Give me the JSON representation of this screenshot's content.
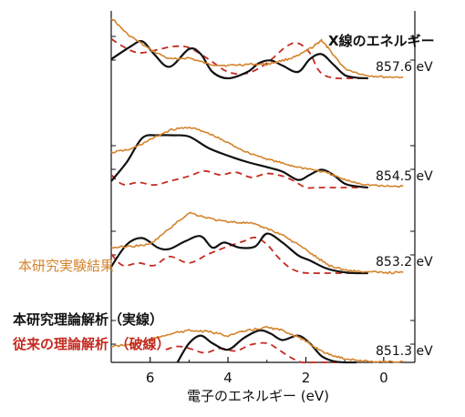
{
  "chart_data": {
    "type": "line",
    "xlabel": "電子のエネルギー (eV)",
    "ylabel": "",
    "xlim": [
      7.0,
      -0.8
    ],
    "x_ticks": [
      6,
      4,
      2,
      0
    ],
    "x_reversed": true,
    "grid": false,
    "legend": {
      "experiment": "本研究実験結果",
      "theory_this_work": "本研究理論解析（実線）",
      "theory_previous": "従来の理論解析　（破線）"
    },
    "header_label": "X線のエネルギー",
    "colors": {
      "experiment": "#d4832c",
      "theory_this_work": "#111111",
      "theory_previous": "#c42a20"
    },
    "panels": [
      {
        "energy": "857.6 eV",
        "experiment": {
          "x": [
            7.0,
            6.6,
            6.0,
            5.5,
            5.0,
            4.5,
            4.0,
            3.5,
            3.0,
            2.6,
            2.2,
            1.8,
            1.6,
            1.4,
            1.0,
            0.5,
            0.0,
            -0.5
          ],
          "y": [
            0.95,
            0.7,
            0.45,
            0.3,
            0.32,
            0.22,
            0.2,
            0.22,
            0.22,
            0.28,
            0.35,
            0.5,
            0.6,
            0.45,
            0.15,
            0.05,
            0.02,
            0.02
          ]
        },
        "theory_this_work": {
          "x": [
            7.0,
            6.5,
            6.2,
            5.9,
            5.5,
            5.0,
            4.7,
            4.4,
            4.0,
            3.5,
            3.2,
            2.9,
            2.6,
            2.2,
            1.9,
            1.6,
            1.3,
            1.0,
            0.7,
            0.4
          ],
          "y": [
            0.3,
            0.5,
            0.58,
            0.38,
            0.18,
            0.46,
            0.38,
            0.1,
            0.0,
            0.1,
            0.24,
            0.28,
            0.2,
            0.1,
            0.3,
            0.38,
            0.22,
            0.05,
            0.01,
            0.0
          ]
        },
        "theory_previous": {
          "x": [
            7.0,
            6.7,
            6.3,
            5.8,
            5.4,
            5.0,
            4.5,
            4.0,
            3.5,
            3.0,
            2.5,
            2.2,
            1.9,
            1.7,
            1.5,
            1.2,
            0.8,
            0.4
          ],
          "y": [
            0.62,
            0.5,
            0.4,
            0.45,
            0.5,
            0.48,
            0.3,
            0.1,
            0.08,
            0.24,
            0.5,
            0.55,
            0.4,
            0.15,
            0.04,
            0.0,
            0.0,
            0.0
          ]
        }
      },
      {
        "energy": "854.5 eV",
        "experiment": {
          "x": [
            7.0,
            6.5,
            6.0,
            5.5,
            5.0,
            4.5,
            4.0,
            3.5,
            3.0,
            2.6,
            2.2,
            1.8,
            1.4,
            1.0,
            0.5,
            0.0,
            -0.5
          ],
          "y": [
            0.55,
            0.6,
            0.75,
            0.9,
            0.95,
            0.85,
            0.7,
            0.55,
            0.45,
            0.38,
            0.32,
            0.28,
            0.22,
            0.12,
            0.05,
            0.02,
            0.02
          ]
        },
        "theory_this_work": {
          "x": [
            7.0,
            6.6,
            6.2,
            5.8,
            5.4,
            5.0,
            4.5,
            4.0,
            3.5,
            3.0,
            2.6,
            2.2,
            1.9,
            1.6,
            1.3,
            1.0,
            0.7,
            0.4
          ],
          "y": [
            0.1,
            0.4,
            0.78,
            0.82,
            0.82,
            0.8,
            0.62,
            0.5,
            0.4,
            0.32,
            0.25,
            0.12,
            0.2,
            0.28,
            0.2,
            0.06,
            0.02,
            0.0
          ]
        },
        "theory_previous": {
          "x": [
            7.0,
            6.7,
            6.3,
            5.9,
            5.5,
            5.0,
            4.6,
            4.2,
            3.8,
            3.4,
            3.0,
            2.6,
            2.3,
            2.0,
            1.7,
            1.4,
            1.0,
            0.6
          ],
          "y": [
            0.2,
            0.05,
            0.08,
            0.04,
            0.1,
            0.18,
            0.26,
            0.2,
            0.24,
            0.16,
            0.22,
            0.18,
            0.1,
            0.0,
            0.0,
            0.0,
            0.0,
            0.0
          ]
        }
      },
      {
        "energy": "853.2 eV",
        "experiment": {
          "x": [
            7.0,
            6.5,
            6.0,
            5.5,
            5.0,
            4.6,
            4.2,
            3.8,
            3.4,
            3.0,
            2.6,
            2.2,
            1.8,
            1.4,
            1.0,
            0.5,
            0.0,
            -0.5
          ],
          "y": [
            0.4,
            0.42,
            0.45,
            0.7,
            0.95,
            0.88,
            0.82,
            0.8,
            0.78,
            0.7,
            0.6,
            0.45,
            0.28,
            0.12,
            0.05,
            0.02,
            0.01,
            0.01
          ]
        },
        "theory_this_work": {
          "x": [
            7.0,
            6.6,
            6.2,
            5.8,
            5.5,
            5.1,
            4.7,
            4.4,
            4.1,
            3.7,
            3.3,
            3.0,
            2.6,
            2.2,
            1.9,
            1.5,
            1.1,
            0.7,
            0.4
          ],
          "y": [
            0.1,
            0.45,
            0.55,
            0.4,
            0.38,
            0.5,
            0.58,
            0.4,
            0.48,
            0.4,
            0.42,
            0.62,
            0.48,
            0.28,
            0.2,
            0.08,
            0.02,
            0.0,
            0.0
          ]
        },
        "theory_previous": {
          "x": [
            7.0,
            6.7,
            6.3,
            5.9,
            5.5,
            5.0,
            4.5,
            4.0,
            3.6,
            3.3,
            3.0,
            2.7,
            2.4,
            2.1,
            1.8,
            1.4,
            1.0,
            0.6
          ],
          "y": [
            0.3,
            0.12,
            0.16,
            0.12,
            0.26,
            0.16,
            0.3,
            0.42,
            0.5,
            0.56,
            0.45,
            0.24,
            0.08,
            0.01,
            0.0,
            0.0,
            0.0,
            0.0
          ]
        }
      },
      {
        "energy": "851.3 eV",
        "experiment": {
          "x": [
            7.0,
            6.5,
            6.0,
            5.5,
            5.0,
            4.5,
            4.0,
            3.5,
            3.0,
            2.6,
            2.2,
            1.8,
            1.4,
            1.0,
            0.5,
            0.0,
            -0.5
          ],
          "y": [
            0.25,
            0.28,
            0.35,
            0.45,
            0.5,
            0.48,
            0.42,
            0.5,
            0.55,
            0.5,
            0.4,
            0.25,
            0.12,
            0.06,
            0.02,
            0.01,
            0.01
          ]
        },
        "theory_this_work": {
          "x": [
            5.3,
            5.0,
            4.7,
            4.4,
            4.0,
            3.6,
            3.2,
            2.9,
            2.6,
            2.2,
            1.9,
            1.6,
            1.3,
            1.0,
            0.7
          ],
          "y": [
            0.0,
            0.3,
            0.42,
            0.3,
            0.2,
            0.38,
            0.5,
            0.45,
            0.35,
            0.42,
            0.3,
            0.1,
            0.02,
            0.0,
            0.0
          ]
        },
        "theory_previous": {
          "x": [
            5.6,
            5.3,
            5.0,
            4.6,
            4.2,
            3.8,
            3.4,
            3.0,
            2.7,
            2.4,
            2.1,
            1.8,
            1.5,
            1.2
          ],
          "y": [
            0.2,
            0.25,
            0.22,
            0.15,
            0.22,
            0.18,
            0.28,
            0.3,
            0.2,
            0.08,
            0.0,
            0.0,
            0.0,
            0.0
          ]
        }
      }
    ]
  }
}
